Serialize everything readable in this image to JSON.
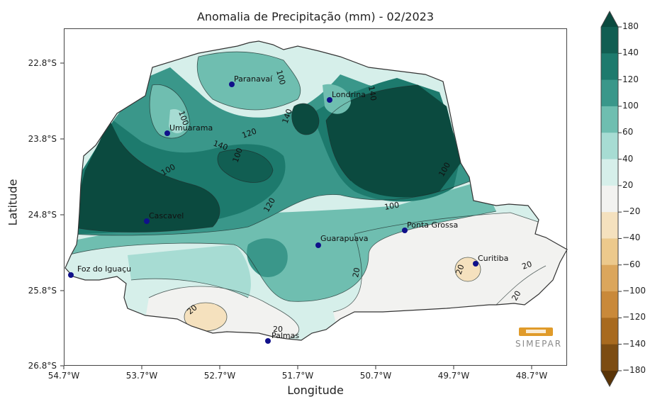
{
  "title": "Anomalia de Precipitação (mm) - 02/2023",
  "xlabel": "Longitude",
  "ylabel": "Latitude",
  "x_ticks": [
    "54.7°W",
    "53.7°W",
    "52.7°W",
    "51.7°W",
    "50.7°W",
    "49.7°W",
    "48.7°W"
  ],
  "y_ticks": [
    "22.8°S",
    "23.8°S",
    "24.8°S",
    "25.8°S",
    "26.8°S"
  ],
  "colorbar": {
    "levels": [
      "180",
      "140",
      "120",
      "100",
      "60",
      "40",
      "20",
      "−20",
      "−40",
      "−60",
      "−100",
      "−120",
      "−140",
      "−180"
    ],
    "colors": [
      "#0b4a3f",
      "#115e52",
      "#1d7a6d",
      "#3a978a",
      "#6fbeb0",
      "#a7dcd3",
      "#d6efea",
      "#f2f2f0",
      "#f5e1be",
      "#ecc98c",
      "#dba65c",
      "#c9893a",
      "#a86a1f",
      "#7c4c12",
      "#5a3407"
    ]
  },
  "cities": [
    {
      "name": "Paranavaí"
    },
    {
      "name": "Londrina"
    },
    {
      "name": "Umuarama"
    },
    {
      "name": "Cascavel"
    },
    {
      "name": "Guarapuava"
    },
    {
      "name": "Ponta Grossa"
    },
    {
      "name": "Curitiba"
    },
    {
      "name": "Foz do Iguaçu"
    },
    {
      "name": "Palmas"
    }
  ],
  "contour_labels": [
    "100",
    "140",
    "100",
    "120",
    "140",
    "100",
    "140",
    "100",
    "120",
    "100",
    "100",
    "20",
    "20",
    "20",
    "20",
    "20",
    "20"
  ],
  "logo_text": "SIMEPAR",
  "chart_data": {
    "type": "heatmap",
    "title": "Anomalia de Precipitação (mm) - 02/2023",
    "xlabel": "Longitude",
    "ylabel": "Latitude",
    "x_range": [
      54.7,
      48.2
    ],
    "y_range": [
      22.4,
      26.8
    ],
    "colorbar_levels": [
      180,
      140,
      120,
      100,
      60,
      40,
      20,
      -20,
      -40,
      -60,
      -100,
      -120,
      -140,
      -180
    ],
    "grid": false
  }
}
